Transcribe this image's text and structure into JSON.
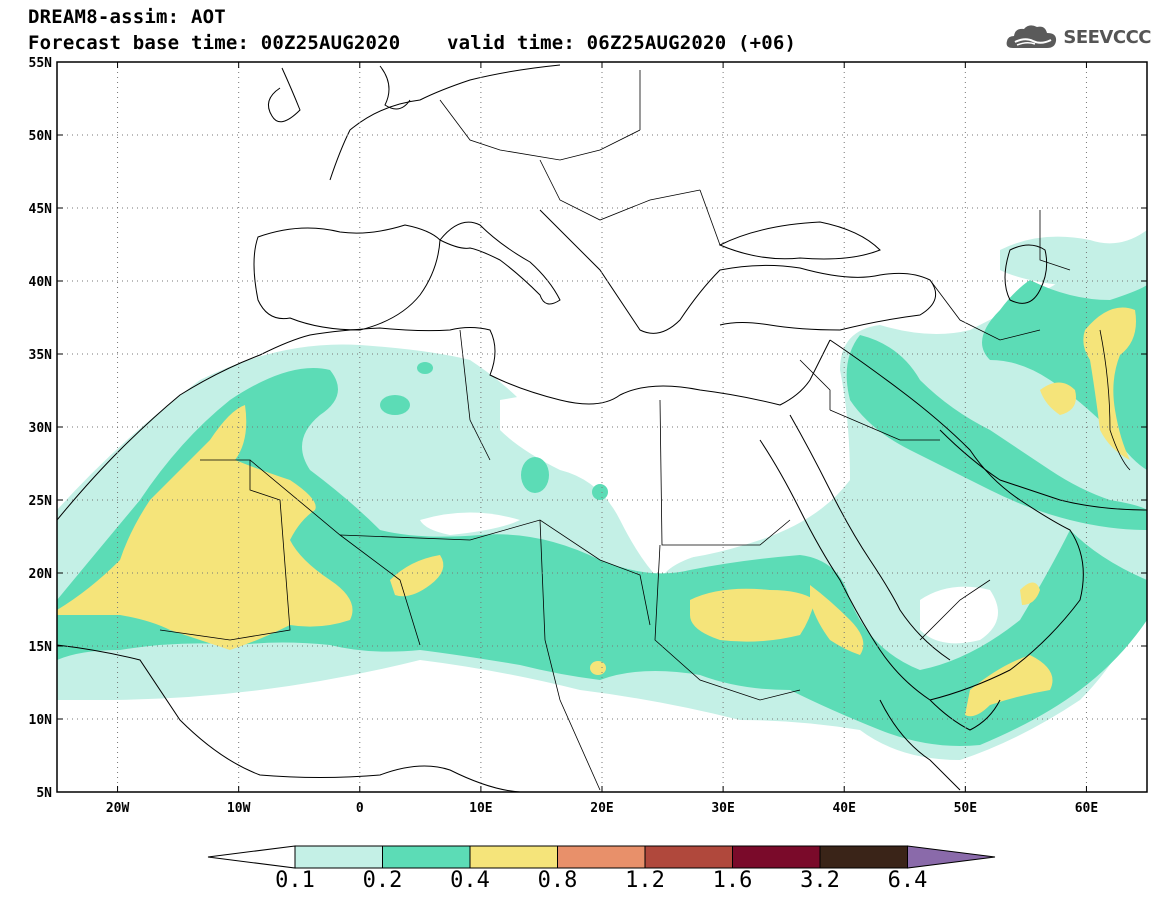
{
  "header": {
    "line1": "DREAM8-assim: AOT",
    "line2": "Forecast base time: 00Z25AUG2020    valid time: 06Z25AUG2020 (+06)"
  },
  "logo": {
    "text": "SEEVCCC",
    "icon": "cloud-icon"
  },
  "map": {
    "lon_range": [
      -25,
      65
    ],
    "lat_range": [
      5,
      55
    ],
    "lat_labels": [
      "55N",
      "50N",
      "45N",
      "40N",
      "35N",
      "30N",
      "25N",
      "20N",
      "15N",
      "10N",
      "5N"
    ],
    "lon_labels": [
      "20W",
      "10W",
      "0",
      "10E",
      "20E",
      "30E",
      "40E",
      "50E",
      "60E"
    ],
    "gridlines": "dotted"
  },
  "colorbar": {
    "labels": [
      "0.1",
      "0.2",
      "0.4",
      "0.8",
      "1.2",
      "1.6",
      "3.2",
      "6.4"
    ],
    "colors": [
      "#ffffff",
      "#c4f0e6",
      "#5cdcb6",
      "#f5e47a",
      "#e8906a",
      "#b0483c",
      "#7a0a2a",
      "#3a2418",
      "#8a6aaa"
    ]
  }
}
